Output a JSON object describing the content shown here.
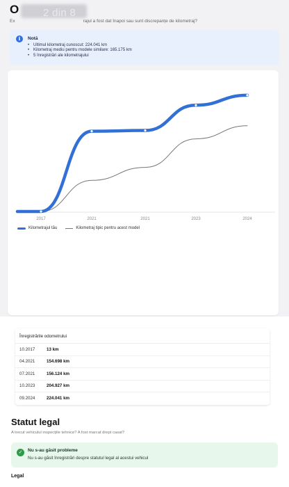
{
  "header": {
    "title": "O",
    "page_indicator": "2 din 8",
    "subtitle_left": "Ex",
    "subtitle_right": "rajul a fost dat înapoi sau sunt discrepanțe de kilometraj?"
  },
  "note": {
    "icon": "info-icon",
    "title": "Notă",
    "items": [
      "Ultimul kilometraj cunoscut: 224.041 km",
      "Kilometraj mediu pentru modele similare: 165.175 km",
      "5 înregistrări ale kilometrajului"
    ]
  },
  "chart_data": {
    "type": "line",
    "x_tick_labels": [
      "2017",
      "2021",
      "2021",
      "2023",
      "2024"
    ],
    "series": [
      {
        "name": "Kilometrajul tău",
        "color": "#3370d6",
        "values": [
          13,
          154698,
          156124,
          204927,
          224041
        ]
      },
      {
        "name": "Kilometraj tipic pentru acest model",
        "color": "#777777",
        "values": [
          13,
          60000,
          85000,
          140000,
          165175
        ]
      }
    ],
    "ylim": [
      0,
      240000
    ],
    "grid": false,
    "legend": "bottom-left"
  },
  "odometer": {
    "title": "Înregistrările odometrului",
    "rows": [
      {
        "date": "10.2017",
        "km": "13 km"
      },
      {
        "date": "04.2021",
        "km": "154.698 km"
      },
      {
        "date": "07.2021",
        "km": "156.124 km"
      },
      {
        "date": "10.2023",
        "km": "204.927 km"
      },
      {
        "date": "09.2024",
        "km": "224.041 km"
      }
    ]
  },
  "legal": {
    "heading": "Statut legal",
    "subtitle": "A trecut vehiculul inspecțiile tehnice? A fost marcat drept casat?",
    "status": {
      "icon": "check-icon",
      "color": "#2d9b48",
      "title": "Nu s-au găsit probleme",
      "text": "Nu s-au găsit înregistrări despre statutul legal al acestui vehicul"
    },
    "next_heading": "Legal"
  }
}
